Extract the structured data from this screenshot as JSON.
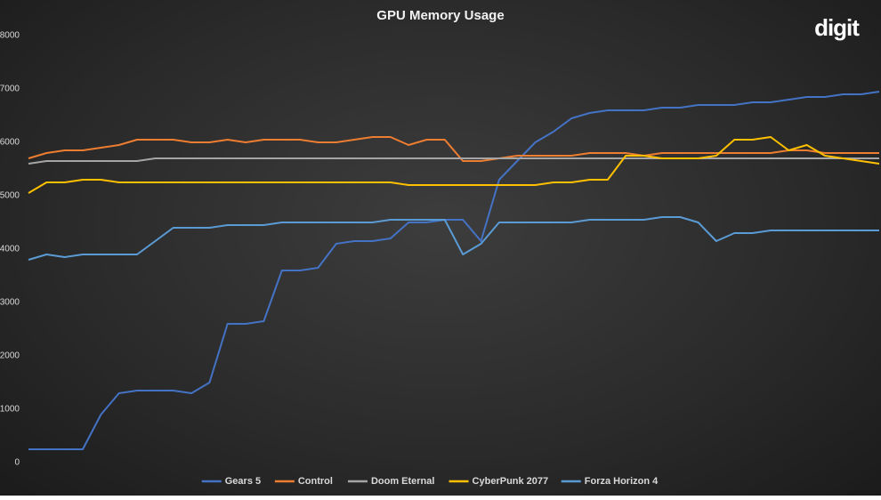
{
  "logo": "digit",
  "chart_data": {
    "type": "line",
    "title": "GPU Memory Usage",
    "ylim": [
      0,
      8000
    ],
    "yticks": [
      0,
      1000,
      2000,
      3000,
      4000,
      5000,
      6000,
      7000,
      8000
    ],
    "grid": false,
    "legend": "bottom",
    "series": [
      {
        "name": "Gears 5",
        "color": "#4472c4",
        "values": [
          250,
          250,
          250,
          250,
          900,
          1300,
          1350,
          1350,
          1350,
          1300,
          1500,
          2600,
          2600,
          2650,
          3600,
          3600,
          3650,
          4100,
          4150,
          4150,
          4200,
          4500,
          4500,
          4550,
          4550,
          4150,
          5300,
          5650,
          6000,
          6200,
          6450,
          6550,
          6600,
          6600,
          6600,
          6650,
          6650,
          6700,
          6700,
          6700,
          6750,
          6750,
          6800,
          6850,
          6850,
          6900,
          6900,
          6950
        ]
      },
      {
        "name": "Control",
        "color": "#ed7d31",
        "values": [
          5700,
          5800,
          5850,
          5850,
          5900,
          5950,
          6050,
          6050,
          6050,
          6000,
          6000,
          6050,
          6000,
          6050,
          6050,
          6050,
          6000,
          6000,
          6050,
          6100,
          6100,
          5950,
          6050,
          6050,
          5650,
          5650,
          5700,
          5750,
          5750,
          5750,
          5750,
          5800,
          5800,
          5800,
          5750,
          5800,
          5800,
          5800,
          5800,
          5800,
          5800,
          5800,
          5850,
          5850,
          5800,
          5800,
          5800,
          5800
        ]
      },
      {
        "name": "Doom Eternal",
        "color": "#a5a5a5",
        "values": [
          5600,
          5650,
          5650,
          5650,
          5650,
          5650,
          5650,
          5700,
          5700,
          5700,
          5700,
          5700,
          5700,
          5700,
          5700,
          5700,
          5700,
          5700,
          5700,
          5700,
          5700,
          5700,
          5700,
          5700,
          5700,
          5700,
          5700,
          5700,
          5700,
          5700,
          5700,
          5700,
          5700,
          5700,
          5700,
          5700,
          5700,
          5700,
          5700,
          5700,
          5700,
          5700,
          5700,
          5700,
          5700,
          5700,
          5700,
          5700
        ]
      },
      {
        "name": "CyberPunk 2077",
        "color": "#ffc000",
        "values": [
          5050,
          5250,
          5250,
          5300,
          5300,
          5250,
          5250,
          5250,
          5250,
          5250,
          5250,
          5250,
          5250,
          5250,
          5250,
          5250,
          5250,
          5250,
          5250,
          5250,
          5250,
          5200,
          5200,
          5200,
          5200,
          5200,
          5200,
          5200,
          5200,
          5250,
          5250,
          5300,
          5300,
          5750,
          5750,
          5700,
          5700,
          5700,
          5750,
          6050,
          6050,
          6100,
          5850,
          5950,
          5750,
          5700,
          5650,
          5600
        ]
      },
      {
        "name": "Forza Horizon 4",
        "color": "#5b9bd5",
        "values": [
          3800,
          3900,
          3850,
          3900,
          3900,
          3900,
          3900,
          4150,
          4400,
          4400,
          4400,
          4450,
          4450,
          4450,
          4500,
          4500,
          4500,
          4500,
          4500,
          4500,
          4550,
          4550,
          4550,
          4550,
          3900,
          4100,
          4500,
          4500,
          4500,
          4500,
          4500,
          4550,
          4550,
          4550,
          4550,
          4600,
          4600,
          4500,
          4150,
          4300,
          4300,
          4350,
          4350,
          4350,
          4350,
          4350,
          4350,
          4350
        ]
      }
    ]
  }
}
